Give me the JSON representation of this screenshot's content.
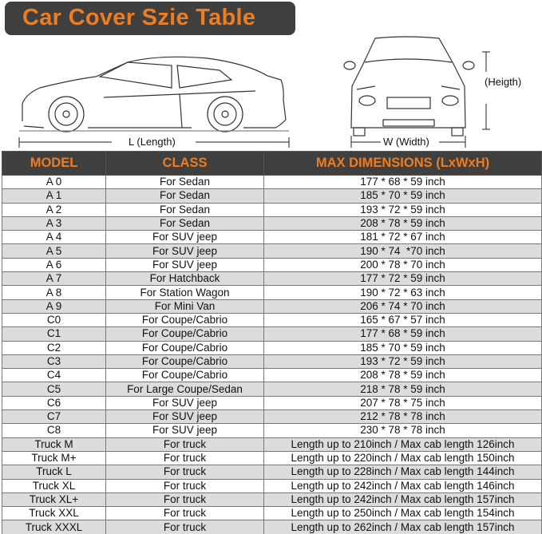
{
  "title": "Car Cover Szie Table",
  "diagram": {
    "length_label": "L (Length)",
    "width_label": "W (Width)",
    "height_label": "(Heigth)"
  },
  "colors": {
    "accent": "#ee7d22",
    "header_bg": "#3f3f3f",
    "alt_row": "#dcdcdc"
  },
  "table": {
    "headers": [
      "MODEL",
      "CLASS",
      "MAX DIMENSIONS (LxWxH)"
    ],
    "rows": [
      [
        "A 0",
        "For Sedan",
        "177 * 68 * 59 inch"
      ],
      [
        "A 1",
        "For Sedan",
        "185 * 70 * 59 inch"
      ],
      [
        "A 2",
        "For Sedan",
        "193 * 72 * 59 inch"
      ],
      [
        "A 3",
        "For Sedan",
        "208 * 78 * 59 inch"
      ],
      [
        "A 4",
        "For SUV jeep",
        "181 * 72 * 67 inch"
      ],
      [
        "A 5",
        "For SUV jeep",
        "190 * 74  *70 inch"
      ],
      [
        "A 6",
        "For SUV jeep",
        "200 * 78 * 70 inch"
      ],
      [
        "A 7",
        "For Hatchback",
        "177 * 72 * 59 inch"
      ],
      [
        "A 8",
        "For Station Wagon",
        "190 * 72 * 63 inch"
      ],
      [
        "A 9",
        "For Mini Van",
        "206 * 74 * 70 inch"
      ],
      [
        "C0",
        "For Coupe/Cabrio",
        "165 * 67 * 57 inch"
      ],
      [
        "C1",
        "For Coupe/Cabrio",
        "177 * 68 * 59 inch"
      ],
      [
        "C2",
        "For Coupe/Cabrio",
        "185 * 70 * 59 inch"
      ],
      [
        "C3",
        "For Coupe/Cabrio",
        "193 * 72 * 59 inch"
      ],
      [
        "C4",
        "For Coupe/Cabrio",
        "208 * 78 * 59 inch"
      ],
      [
        "C5",
        "For Large Coupe/Sedan",
        "218 * 78 * 59 inch"
      ],
      [
        "C6",
        "For SUV jeep",
        "207 * 78 * 75 inch"
      ],
      [
        "C7",
        "For SUV jeep",
        "212 * 78 * 78 inch"
      ],
      [
        "C8",
        "For SUV jeep",
        "230 * 78 * 78 inch"
      ],
      [
        "Truck M",
        "For truck",
        "Length up to 210inch / Max cab length 126inch"
      ],
      [
        "Truck M+",
        "For truck",
        "Length up to 220inch / Max cab length 150inch"
      ],
      [
        "Truck L",
        "For truck",
        "Length up to 228inch / Max cab length 144inch"
      ],
      [
        "Truck XL",
        "For truck",
        "Length up to 242inch / Max cab length 146inch"
      ],
      [
        "Truck XL+",
        "For truck",
        "Length up to 242inch / Max cab length 157inch"
      ],
      [
        "Truck XXL",
        "For truck",
        "Length up to 250inch / Max cab length 154inch"
      ],
      [
        "Truck XXXL",
        "For truck",
        "Length up to 262inch / Max cab length 157inch"
      ]
    ]
  }
}
